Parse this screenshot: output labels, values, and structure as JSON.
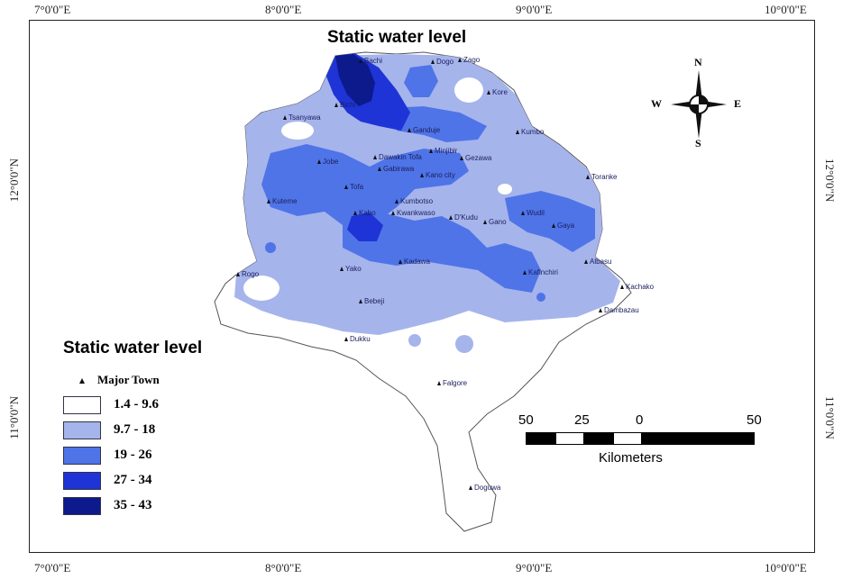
{
  "map": {
    "title": "Static water level",
    "coords": {
      "top": [
        "7°0'0\"E",
        "8°0'0\"E",
        "9°0'0\"E",
        "10°0'0\"E"
      ],
      "bottom": [
        "7°0'0\"E",
        "8°0'0\"E",
        "9°0'0\"E",
        "10°0'0\"E"
      ],
      "left": [
        "12°0'0\"N",
        "11°0'0\"N"
      ],
      "right": [
        "12°0'0\"N",
        "11°0'0\"N"
      ]
    },
    "legend": {
      "title": "Static water level",
      "town_label": "Major Town",
      "classes": [
        {
          "label": "1.4 - 9.6",
          "color": "#ffffff"
        },
        {
          "label": "9.7 - 18",
          "color": "#a6b4ec"
        },
        {
          "label": "19 - 26",
          "color": "#4f74e8"
        },
        {
          "label": "27 - 34",
          "color": "#1e34d6"
        },
        {
          "label": "35 - 43",
          "color": "#0c1a8c"
        }
      ]
    },
    "scale": {
      "ticks": [
        "50",
        "25",
        "0",
        "50"
      ],
      "unit": "Kilometers"
    },
    "compass": {
      "n": "N",
      "s": "S",
      "e": "E",
      "w": "W"
    },
    "towns": [
      "Bichi",
      "Dogo",
      "Zago",
      "Kore",
      "Tsanyawa",
      "Ganduje",
      "Kumbo",
      "Minjibir",
      "Dawakin Tofa",
      "Gezawa",
      "Gabirawa",
      "Jobe",
      "Kano city",
      "Toranke",
      "Tofa",
      "Kumbotso",
      "Kuteme",
      "Kabo",
      "Kwankwaso",
      "D'Kudu",
      "Gano",
      "Wudil",
      "Gaya",
      "Kadawa",
      "Albasu",
      "Yako",
      "Kafinchiri",
      "Rogo",
      "Kachako",
      "Bebeji",
      "Dambazau",
      "Dukku",
      "Falgore",
      "Doguwa",
      "Bachi"
    ]
  }
}
